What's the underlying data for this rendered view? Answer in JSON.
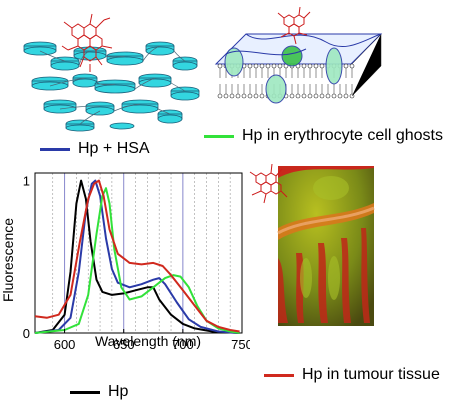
{
  "colors": {
    "hsa": "#2a3aa8",
    "ghosts": "#32e23a",
    "tumour": "#d0291e",
    "hp": "#000000",
    "protein": "#33d6e0",
    "hp_molecule": "#cc1a1a"
  },
  "legends": {
    "hsa": "Hp + HSA",
    "ghosts": "Hp in erythrocyte cell ghosts",
    "tumour": "Hp in tumour tissue",
    "hp": "Hp"
  },
  "icons": {
    "protein": "hsa-protein-ribbon-icon",
    "membrane": "cell-membrane-bilayer-icon",
    "molecule": "hematoporphyrin-molecule-icon",
    "tissue": "tumour-tissue-micrograph-icon"
  },
  "chart_data": {
    "type": "line",
    "xlabel": "Wavelength (nm)",
    "ylabel": "Fluorescence",
    "xlim": [
      575,
      750
    ],
    "ylim": [
      0,
      1.05
    ],
    "x_ticks": [
      600,
      650,
      700,
      750
    ],
    "y_ticks": [
      0,
      1
    ],
    "grid": "dashed vertical lines every 10 nm",
    "series": [
      {
        "key": "hp",
        "color": "#000000",
        "points": [
          [
            575,
            0.0
          ],
          [
            590,
            0.02
          ],
          [
            600,
            0.12
          ],
          [
            605,
            0.4
          ],
          [
            610,
            0.85
          ],
          [
            614,
            1.0
          ],
          [
            618,
            0.88
          ],
          [
            622,
            0.6
          ],
          [
            627,
            0.35
          ],
          [
            632,
            0.27
          ],
          [
            640,
            0.25
          ],
          [
            650,
            0.26
          ],
          [
            660,
            0.28
          ],
          [
            670,
            0.3
          ],
          [
            675,
            0.3
          ],
          [
            680,
            0.22
          ],
          [
            690,
            0.12
          ],
          [
            700,
            0.06
          ],
          [
            710,
            0.03
          ],
          [
            725,
            0.01
          ],
          [
            748,
            0.0
          ]
        ]
      },
      {
        "key": "hsa",
        "color": "#2a3aa8",
        "points": [
          [
            575,
            0.0
          ],
          [
            595,
            0.02
          ],
          [
            605,
            0.1
          ],
          [
            612,
            0.4
          ],
          [
            618,
            0.8
          ],
          [
            623,
            0.98
          ],
          [
            626,
            1.0
          ],
          [
            630,
            0.9
          ],
          [
            635,
            0.62
          ],
          [
            640,
            0.42
          ],
          [
            645,
            0.33
          ],
          [
            655,
            0.3
          ],
          [
            665,
            0.32
          ],
          [
            675,
            0.35
          ],
          [
            680,
            0.36
          ],
          [
            685,
            0.32
          ],
          [
            695,
            0.2
          ],
          [
            705,
            0.09
          ],
          [
            715,
            0.04
          ],
          [
            730,
            0.01
          ],
          [
            748,
            0.0
          ]
        ]
      },
      {
        "key": "ghosts",
        "color": "#32e23a",
        "points": [
          [
            575,
            0.0
          ],
          [
            600,
            0.02
          ],
          [
            612,
            0.06
          ],
          [
            620,
            0.25
          ],
          [
            627,
            0.65
          ],
          [
            632,
            0.9
          ],
          [
            635,
            0.95
          ],
          [
            638,
            0.85
          ],
          [
            642,
            0.55
          ],
          [
            648,
            0.3
          ],
          [
            655,
            0.22
          ],
          [
            665,
            0.24
          ],
          [
            675,
            0.3
          ],
          [
            685,
            0.36
          ],
          [
            692,
            0.38
          ],
          [
            698,
            0.37
          ],
          [
            705,
            0.3
          ],
          [
            712,
            0.18
          ],
          [
            720,
            0.08
          ],
          [
            730,
            0.03
          ],
          [
            740,
            0.01
          ],
          [
            748,
            0.0
          ]
        ]
      },
      {
        "key": "tumour",
        "color": "#d0291e",
        "points": [
          [
            575,
            0.11
          ],
          [
            585,
            0.1
          ],
          [
            595,
            0.12
          ],
          [
            605,
            0.25
          ],
          [
            613,
            0.6
          ],
          [
            620,
            0.88
          ],
          [
            625,
            0.98
          ],
          [
            629,
            1.0
          ],
          [
            633,
            0.9
          ],
          [
            638,
            0.68
          ],
          [
            645,
            0.52
          ],
          [
            655,
            0.46
          ],
          [
            665,
            0.45
          ],
          [
            675,
            0.46
          ],
          [
            683,
            0.44
          ],
          [
            690,
            0.38
          ],
          [
            700,
            0.28
          ],
          [
            710,
            0.18
          ],
          [
            720,
            0.08
          ],
          [
            730,
            0.04
          ],
          [
            740,
            0.02
          ],
          [
            748,
            0.01
          ]
        ]
      }
    ]
  }
}
